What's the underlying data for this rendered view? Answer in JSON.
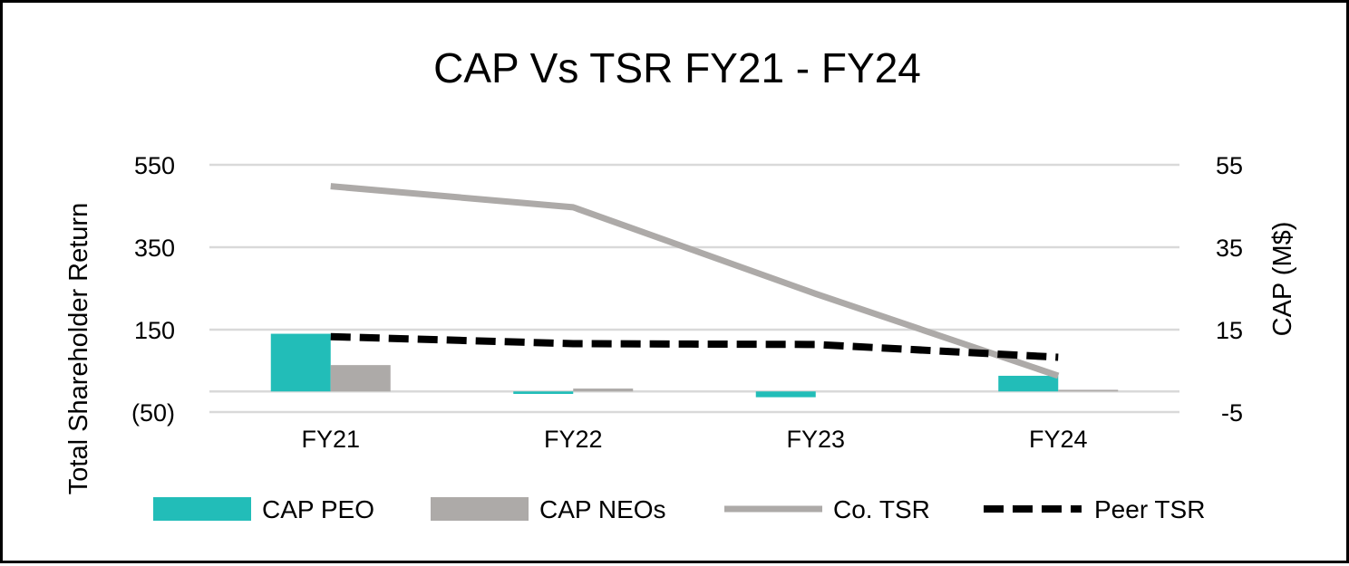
{
  "chart_data": {
    "type": "bar",
    "title": "CAP Vs TSR FY21 - FY24",
    "categories": [
      "FY21",
      "FY22",
      "FY23",
      "FY24"
    ],
    "ylabel_left": "Total Shareholder Return",
    "ylabel_right": "CAP (M$)",
    "ylim_left": [
      -50,
      550
    ],
    "yticks_left": [
      -50,
      150,
      350,
      550
    ],
    "ytick_labels_left": [
      "(50)",
      "150",
      "350",
      "550"
    ],
    "ylim_right": [
      -5,
      55
    ],
    "yticks_right": [
      -5,
      15,
      35,
      55
    ],
    "ytick_labels_right": [
      "-5",
      "15",
      "35",
      "55"
    ],
    "grid": true,
    "legend_position": "bottom",
    "series": [
      {
        "name": "CAP PEO",
        "kind": "bar",
        "axis": "right",
        "color": "#22BDB8",
        "values": [
          14,
          -0.6,
          -1.4,
          3.8
        ]
      },
      {
        "name": "CAP NEOs",
        "kind": "bar",
        "axis": "right",
        "color": "#ADAAA8",
        "values": [
          6.4,
          0.7,
          0,
          0.4
        ]
      },
      {
        "name": "Co. TSR",
        "kind": "line",
        "axis": "left",
        "color": "#ADAAA8",
        "values": [
          498,
          447,
          237,
          38
        ]
      },
      {
        "name": "Peer TSR",
        "kind": "line",
        "dashed": true,
        "axis": "left",
        "color": "#000000",
        "values": [
          133,
          116,
          114,
          83
        ]
      }
    ]
  }
}
